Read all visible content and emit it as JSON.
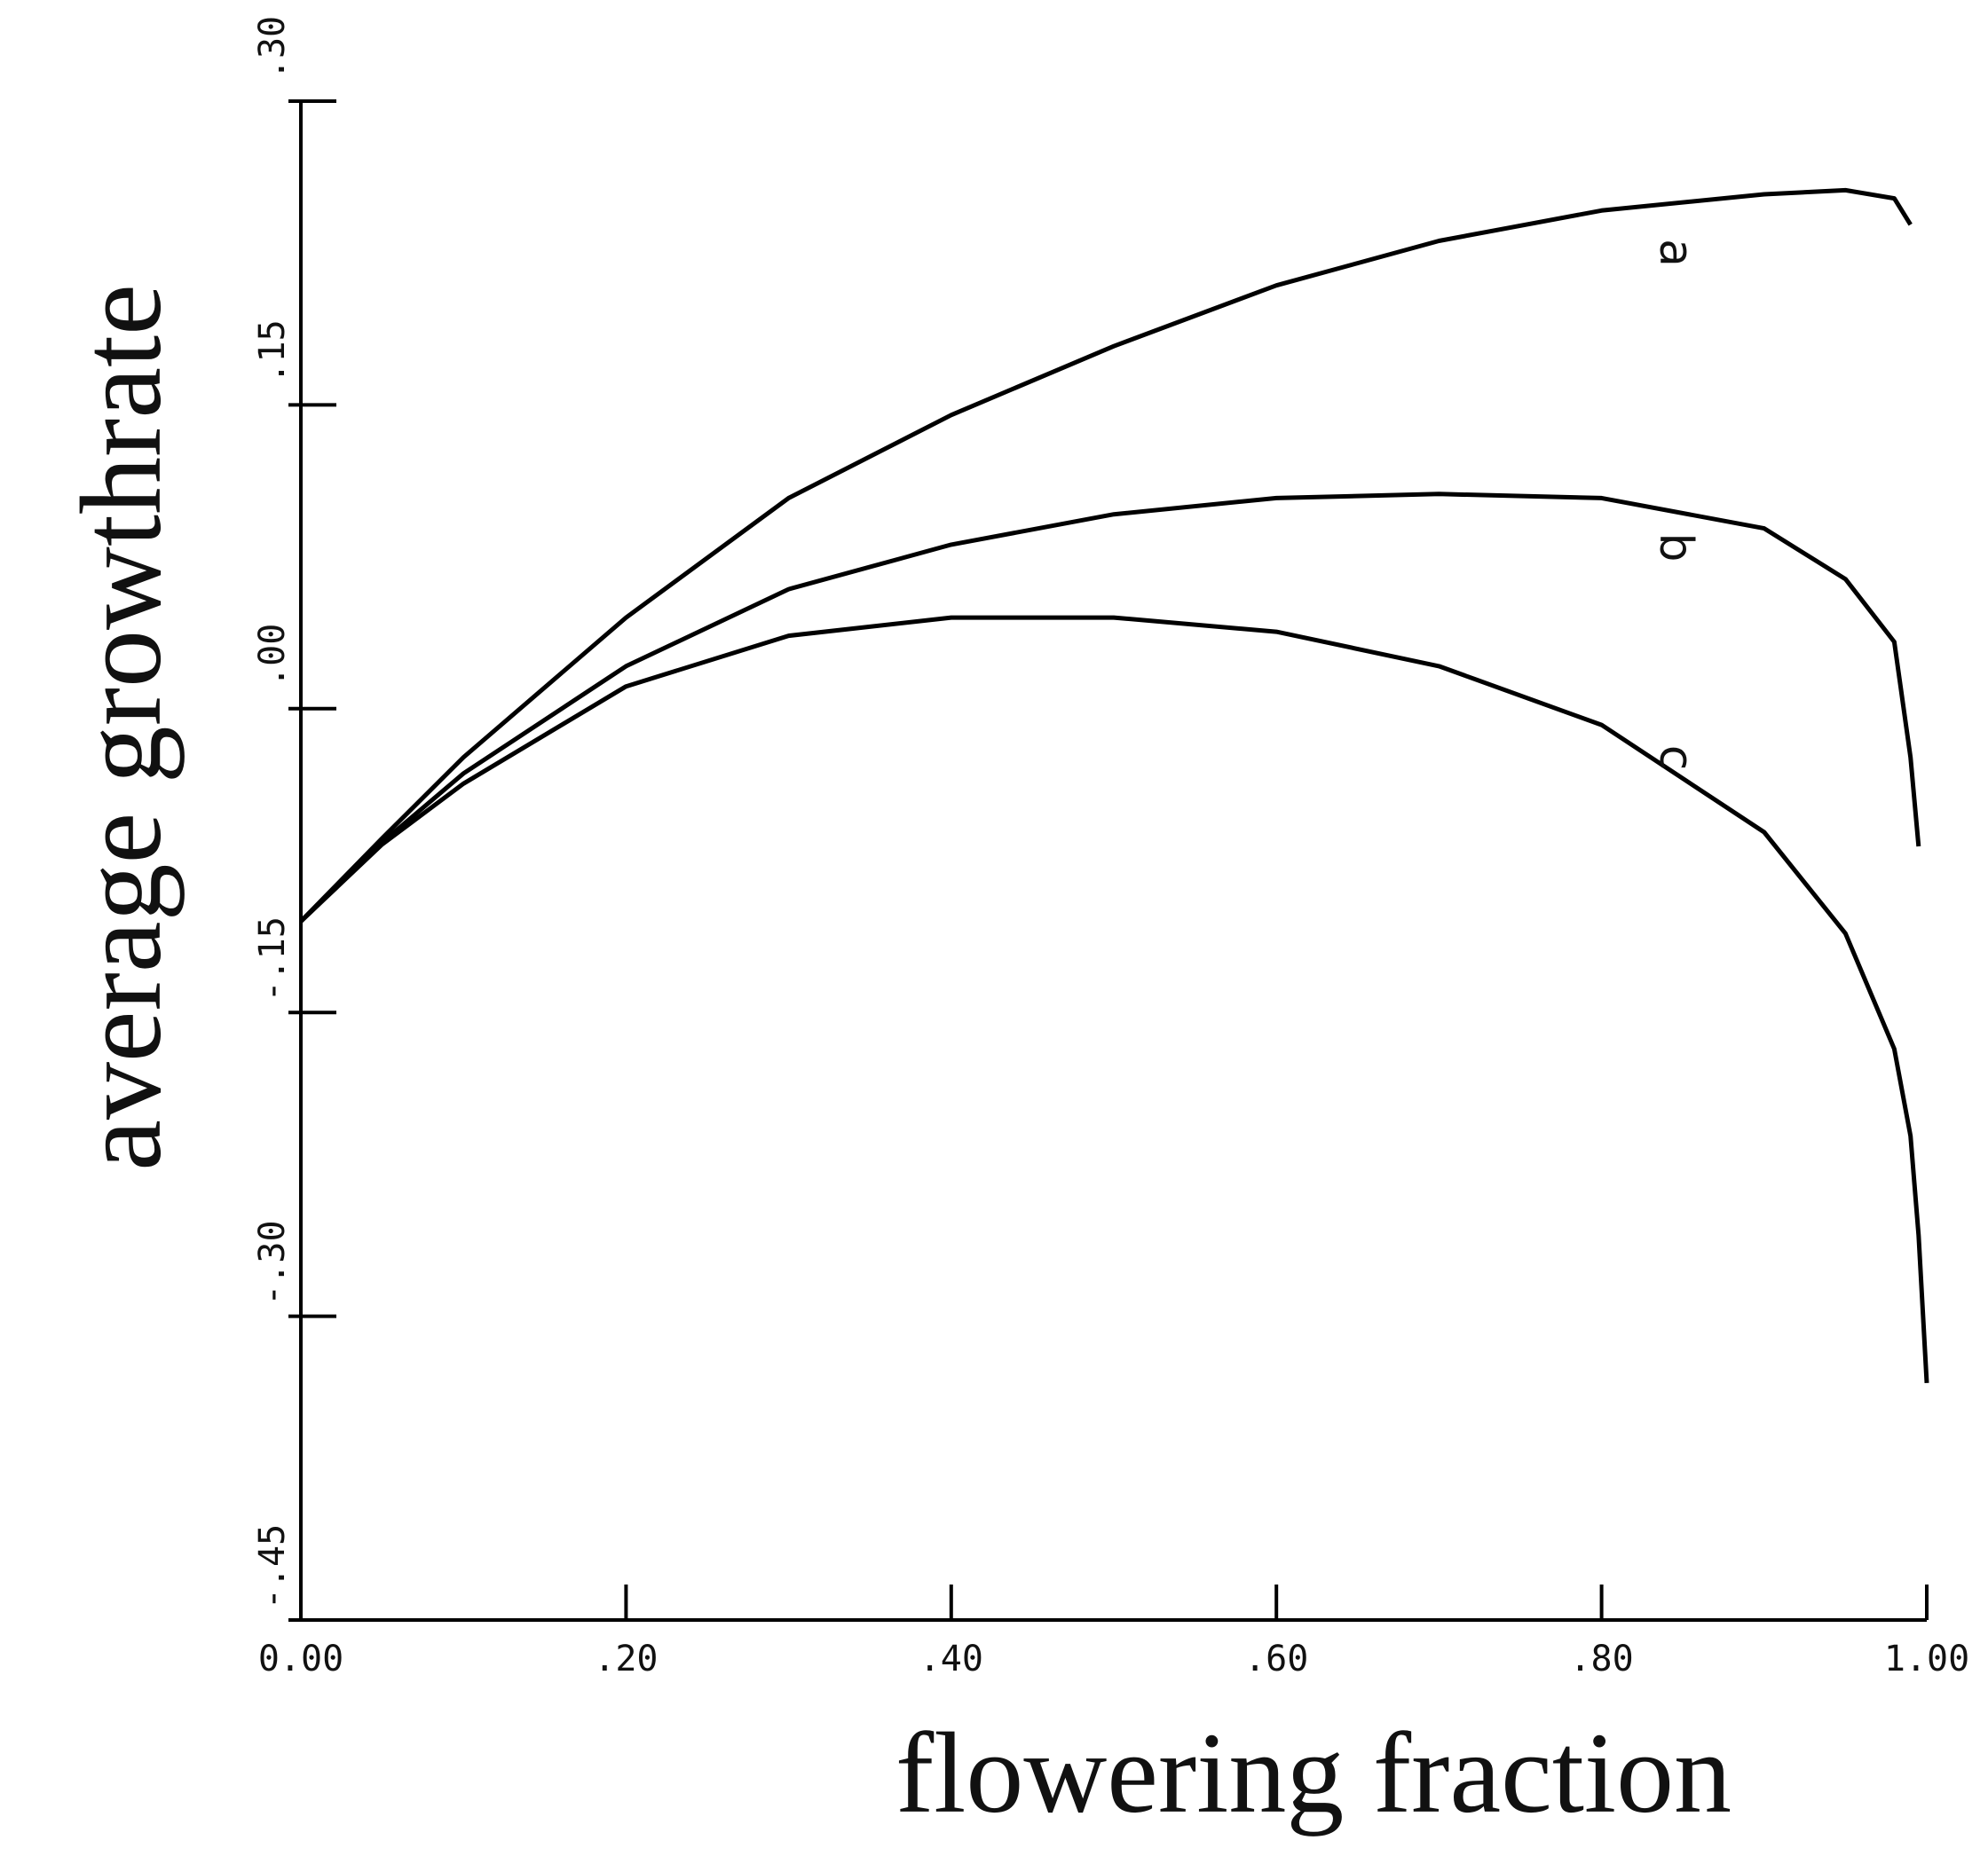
{
  "chart_data": {
    "type": "line",
    "xlabel": "flowering fraction",
    "ylabel": "average growthrate",
    "xlim": [
      0,
      1
    ],
    "ylim": [
      -0.45,
      0.3
    ],
    "xticks": [
      {
        "value": 0,
        "label": "0.00"
      },
      {
        "value": 0.2,
        "label": ".20"
      },
      {
        "value": 0.4,
        "label": ".40"
      },
      {
        "value": 0.6,
        "label": ".60"
      },
      {
        "value": 0.8,
        "label": ".80"
      },
      {
        "value": 1,
        "label": "1.00"
      }
    ],
    "yticks": [
      {
        "value": -0.45,
        "label": "-.45"
      },
      {
        "value": -0.3,
        "label": "-.30"
      },
      {
        "value": -0.15,
        "label": "-.15"
      },
      {
        "value": 0,
        "label": ".00"
      },
      {
        "value": 0.15,
        "label": ".15"
      },
      {
        "value": 0.3,
        "label": ".30"
      }
    ],
    "grid": false,
    "x": [
      0,
      0.05,
      0.1,
      0.2,
      0.3,
      0.4,
      0.5,
      0.6,
      0.7,
      0.8,
      0.9,
      0.95,
      0.98,
      0.99,
      0.995,
      1.0
    ],
    "series": [
      {
        "name": "a",
        "color": "#000000",
        "values": [
          -0.105,
          -0.064,
          -0.024,
          0.045,
          0.104,
          0.145,
          0.179,
          0.209,
          0.231,
          0.246,
          0.254,
          0.256,
          0.252,
          0.239,
          null,
          null
        ]
      },
      {
        "name": "b",
        "color": "#000000",
        "values": [
          -0.105,
          -0.066,
          -0.032,
          0.021,
          0.059,
          0.081,
          0.096,
          0.104,
          0.106,
          0.104,
          0.089,
          0.064,
          0.033,
          -0.024,
          -0.068,
          null
        ]
      },
      {
        "name": "c",
        "color": "#000000",
        "values": [
          -0.105,
          -0.067,
          -0.037,
          0.011,
          0.036,
          0.045,
          0.045,
          0.038,
          0.021,
          -0.008,
          -0.061,
          -0.111,
          -0.168,
          -0.211,
          -0.26,
          -0.333
        ]
      }
    ]
  }
}
